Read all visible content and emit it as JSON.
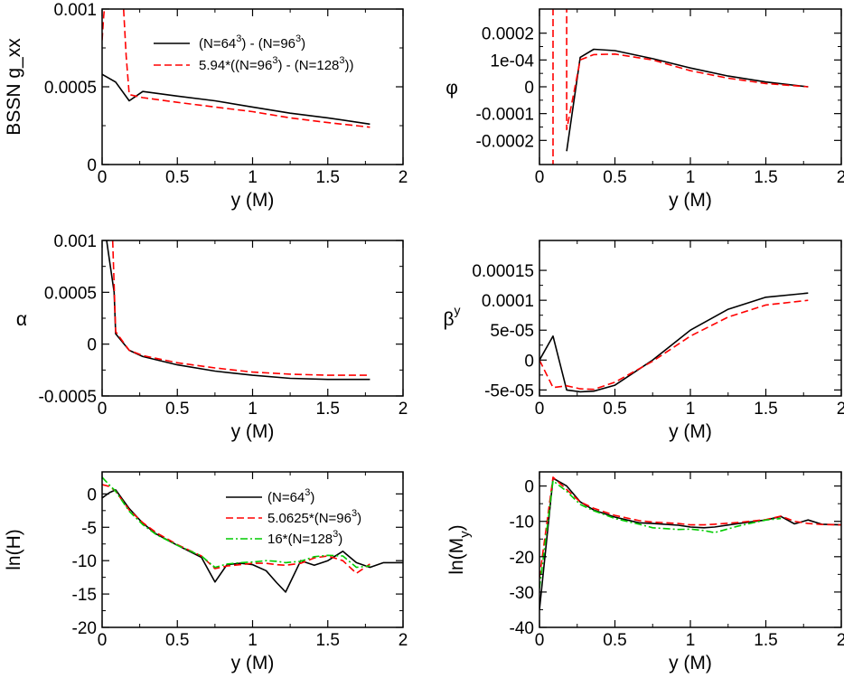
{
  "chart_data": [
    {
      "id": "gxx",
      "type": "line",
      "xlabel": "y (M)",
      "ylabel": "BSSN g_xx",
      "xlim": [
        0,
        2
      ],
      "ylim": [
        0,
        0.001
      ],
      "xticks": [
        0,
        0.5,
        1,
        1.5,
        2
      ],
      "xtick_labels": [
        "0",
        "0.5",
        "1",
        "1.5",
        "2"
      ],
      "yticks": [
        0,
        0.0005,
        0.001
      ],
      "ytick_labels": [
        "0",
        "0.0005",
        "0.001"
      ],
      "legend_position": "top-right",
      "series": [
        {
          "name": "(N=64^3) - (N=96^3)",
          "legend": [
            "(N=64",
            "3",
            ") - (N=96",
            "3",
            ")"
          ],
          "style": "solid",
          "color": "#000000",
          "x": [
            0.0,
            0.09,
            0.18,
            0.27,
            0.5,
            0.75,
            1.0,
            1.25,
            1.5,
            1.78
          ],
          "y": [
            0.00058,
            0.00053,
            0.00041,
            0.00047,
            0.00044,
            0.00041,
            0.00037,
            0.00033,
            0.0003,
            0.00026
          ]
        },
        {
          "name": "5.94*((N=96^3) - (N=128^3))",
          "legend": [
            "5.94*((N=96",
            "3",
            ") - (N=128",
            "3",
            "))"
          ],
          "style": "dashed",
          "color": "#ff0000",
          "x": [
            0.0,
            0.01,
            0.02,
            0.14,
            0.16,
            0.18,
            0.27,
            0.5,
            0.75,
            1.0,
            1.25,
            1.5,
            1.78
          ],
          "y": [
            0.0008,
            0.00095,
            0.00105,
            0.00105,
            0.0007,
            0.00045,
            0.00043,
            0.0004,
            0.00037,
            0.00034,
            0.0003,
            0.00027,
            0.00024
          ]
        }
      ]
    },
    {
      "id": "phi",
      "type": "line",
      "xlabel": "y (M)",
      "ylabel": "φ",
      "xlim": [
        0,
        2
      ],
      "ylim": [
        -0.00029,
        0.00029
      ],
      "xticks": [
        0,
        0.5,
        1,
        1.5,
        2
      ],
      "xtick_labels": [
        "0",
        "0.5",
        "1",
        "1.5",
        "2"
      ],
      "yticks": [
        -0.0002,
        -0.0001,
        0,
        0.0001,
        0.0002
      ],
      "ytick_labels": [
        "-0.0002",
        "-0.0001",
        "0",
        "1e-04",
        "0.0002"
      ],
      "series": [
        {
          "name": "(N=64^3) - (N=96^3)",
          "style": "solid",
          "color": "#000000",
          "x": [
            0.18,
            0.27,
            0.36,
            0.5,
            0.75,
            1.0,
            1.25,
            1.5,
            1.78
          ],
          "y": [
            -0.00024,
            0.00011,
            0.00014,
            0.000135,
            0.000105,
            7e-05,
            4e-05,
            1.8e-05,
            0.0
          ]
        },
        {
          "name": "5.94*((N=96^3) - (N=128^3))",
          "style": "dashed",
          "color": "#ff0000",
          "x": [
            0.09,
            0.09,
            0.09,
            0.18,
            0.18,
            0.18,
            0.27,
            0.36,
            0.5,
            0.75,
            1.0,
            1.25,
            1.5,
            1.78
          ],
          "y": [
            -0.0003,
            0.0,
            0.0003,
            0.0003,
            0.0,
            -0.00016,
            0.0001,
            0.00012,
            0.000122,
            0.0001,
            6e-05,
            3.2e-05,
            1.2e-05,
            0.0
          ]
        }
      ]
    },
    {
      "id": "alpha",
      "type": "line",
      "xlabel": "y (M)",
      "ylabel": "α",
      "xlim": [
        0,
        2
      ],
      "ylim": [
        -0.0005,
        0.001
      ],
      "xticks": [
        0,
        0.5,
        1,
        1.5,
        2
      ],
      "xtick_labels": [
        "0",
        "0.5",
        "1",
        "1.5",
        "2"
      ],
      "yticks": [
        -0.0005,
        0,
        0.0005,
        0.001
      ],
      "ytick_labels": [
        "-0.0005",
        "0",
        "0.0005",
        "0.001"
      ],
      "series": [
        {
          "name": "(N=64^3) - (N=96^3)",
          "style": "solid",
          "color": "#000000",
          "x": [
            0.03,
            0.05,
            0.08,
            0.09,
            0.18,
            0.27,
            0.5,
            0.75,
            1.0,
            1.25,
            1.5,
            1.78
          ],
          "y": [
            0.001,
            0.0008,
            0.0005,
            0.0001,
            -6e-05,
            -0.00012,
            -0.0002,
            -0.00026,
            -0.0003,
            -0.00033,
            -0.00034,
            -0.00034
          ]
        },
        {
          "name": "5.94*((N=96^3) - (N=128^3))",
          "style": "dashed",
          "color": "#ff0000",
          "x": [
            0.07,
            0.09,
            0.18,
            0.27,
            0.5,
            0.75,
            1.0,
            1.25,
            1.5,
            1.78
          ],
          "y": [
            0.001,
            0.00012,
            -6e-05,
            -0.00011,
            -0.00018,
            -0.00023,
            -0.00027,
            -0.00029,
            -0.0003,
            -0.0003
          ]
        }
      ]
    },
    {
      "id": "betay",
      "type": "line",
      "xlabel": "y (M)",
      "ylabel": "βy",
      "ylabel_main": "β",
      "ylabel_sup": "y",
      "xlim": [
        0,
        2
      ],
      "ylim": [
        -6e-05,
        0.0002
      ],
      "xticks": [
        0,
        0.5,
        1,
        1.5,
        2
      ],
      "xtick_labels": [
        "0",
        "0.5",
        "1",
        "1.5",
        "2"
      ],
      "yticks": [
        -5e-05,
        0,
        5e-05,
        0.0001,
        0.00015
      ],
      "ytick_labels": [
        "-5e-05",
        "0",
        "5e-05",
        "0.0001",
        "0.00015"
      ],
      "series": [
        {
          "name": "(N=64^3) - (N=96^3)",
          "style": "solid",
          "color": "#000000",
          "x": [
            0.0,
            0.09,
            0.18,
            0.27,
            0.36,
            0.5,
            0.75,
            1.0,
            1.25,
            1.5,
            1.78
          ],
          "y": [
            0.0,
            4e-05,
            -5e-05,
            -5.3e-05,
            -5.2e-05,
            -4.2e-05,
            0.0,
            5e-05,
            8.5e-05,
            0.000105,
            0.000112
          ]
        },
        {
          "name": "5.94*((N=96^3) - (N=128^3))",
          "style": "dashed",
          "color": "#ff0000",
          "x": [
            0.0,
            0.09,
            0.18,
            0.27,
            0.36,
            0.5,
            0.75,
            1.0,
            1.25,
            1.5,
            1.78
          ],
          "y": [
            0.0,
            -4.6e-05,
            -4.3e-05,
            -4.8e-05,
            -4.9e-05,
            -3.7e-05,
            -2e-06,
            4e-05,
            7.2e-05,
            9.2e-05,
            0.0001
          ]
        }
      ]
    },
    {
      "id": "lnH",
      "type": "line",
      "xlabel": "y (M)",
      "ylabel": "ln(H)",
      "xlim": [
        0,
        2
      ],
      "ylim": [
        -20,
        3.3
      ],
      "xticks": [
        0,
        0.5,
        1,
        1.5,
        2
      ],
      "xtick_labels": [
        "0",
        "0.5",
        "1",
        "1.5",
        "2"
      ],
      "yticks": [
        -20,
        -15,
        -10,
        -5,
        0
      ],
      "ytick_labels": [
        "-20",
        "-15",
        "-10",
        "-5",
        "0"
      ],
      "legend_position": "center-right",
      "series": [
        {
          "name": "(N=64^3)",
          "legend": [
            "(N=64",
            "3",
            ")"
          ],
          "style": "solid",
          "color": "#000000",
          "x": [
            0.0,
            0.05,
            0.09,
            0.18,
            0.27,
            0.36,
            0.5,
            0.66,
            0.75,
            0.83,
            0.92,
            1.0,
            1.09,
            1.16,
            1.22,
            1.32,
            1.41,
            1.5,
            1.6,
            1.69,
            1.78,
            1.87,
            2.0
          ],
          "y": [
            -0.6,
            0.2,
            0.6,
            -2.2,
            -4.4,
            -6.0,
            -7.7,
            -9.5,
            -13.2,
            -10.6,
            -10.4,
            -10.6,
            -11.5,
            -13.3,
            -14.7,
            -10.0,
            -10.7,
            -10.0,
            -8.6,
            -10.3,
            -11.0,
            -10.3,
            -10.3
          ]
        },
        {
          "name": "5.0625*(N=96^3)",
          "legend": [
            "5.0625*(N=96",
            "3",
            ")"
          ],
          "style": "dashed",
          "color": "#ff0000",
          "x": [
            0.0,
            0.05,
            0.09,
            0.18,
            0.27,
            0.36,
            0.5,
            0.66,
            0.75,
            0.83,
            0.92,
            1.0,
            1.09,
            1.16,
            1.22,
            1.32,
            1.41,
            1.5,
            1.6,
            1.69,
            1.78
          ],
          "y": [
            1.4,
            1.1,
            0.4,
            -2.4,
            -4.3,
            -5.8,
            -7.6,
            -9.3,
            -11.2,
            -10.8,
            -10.6,
            -10.4,
            -10.4,
            -10.6,
            -10.7,
            -10.4,
            -9.6,
            -9.3,
            -10.0,
            -11.9,
            -10.5
          ]
        },
        {
          "name": "16*(N=128^3)",
          "legend": [
            "16*(N=128",
            "3",
            ")"
          ],
          "style": "dashdot",
          "color": "#00cc00",
          "x": [
            0.0,
            0.05,
            0.09,
            0.18,
            0.27,
            0.36,
            0.5,
            0.66,
            0.75,
            0.83,
            0.92,
            1.0,
            1.09,
            1.16,
            1.22,
            1.32,
            1.41,
            1.5,
            1.6,
            1.69,
            1.78
          ],
          "y": [
            2.5,
            1.3,
            0.4,
            -2.6,
            -4.6,
            -6.1,
            -7.7,
            -9.3,
            -11.0,
            -10.5,
            -10.3,
            -10.2,
            -10.0,
            -10.1,
            -10.3,
            -10.1,
            -9.4,
            -9.2,
            -9.3,
            -11.0,
            -10.8
          ]
        }
      ]
    },
    {
      "id": "lnMy",
      "type": "line",
      "xlabel": "y (M)",
      "ylabel": "ln(My)",
      "ylabel_main": "ln(M",
      "ylabel_sub": "y",
      "ylabel_tail": ")",
      "xlim": [
        0,
        2
      ],
      "ylim": [
        -40,
        4
      ],
      "xticks": [
        0,
        0.5,
        1,
        1.5,
        2
      ],
      "xtick_labels": [
        "0",
        "0.5",
        "1",
        "1.5",
        "2"
      ],
      "yticks": [
        -40,
        -30,
        -20,
        -10,
        0
      ],
      "ytick_labels": [
        "-40",
        "-30",
        "-20",
        "-10",
        "0"
      ],
      "series": [
        {
          "name": "(N=64^3)",
          "style": "solid",
          "color": "#000000",
          "x": [
            0.0,
            0.09,
            0.18,
            0.27,
            0.36,
            0.5,
            0.66,
            0.75,
            0.92,
            1.0,
            1.09,
            1.16,
            1.32,
            1.5,
            1.6,
            1.69,
            1.78,
            1.87,
            2.0
          ],
          "y": [
            -35.0,
            2.2,
            0.0,
            -4.5,
            -6.8,
            -8.8,
            -10.4,
            -10.6,
            -11.1,
            -11.6,
            -11.8,
            -11.6,
            -10.6,
            -9.6,
            -8.6,
            -10.7,
            -9.6,
            -10.8,
            -11.0
          ]
        },
        {
          "name": "5.0625*(N=96^3)",
          "style": "dashed",
          "color": "#ff0000",
          "x": [
            0.0,
            0.09,
            0.18,
            0.27,
            0.36,
            0.5,
            0.66,
            0.75,
            0.92,
            1.0,
            1.09,
            1.16,
            1.32,
            1.5,
            1.6,
            1.69,
            1.78,
            1.87,
            2.0
          ],
          "y": [
            -26.0,
            2.5,
            -1.0,
            -4.5,
            -6.3,
            -8.3,
            -9.8,
            -10.2,
            -10.6,
            -11.0,
            -11.0,
            -10.8,
            -10.3,
            -9.5,
            -8.5,
            -10.0,
            -10.6,
            -10.9,
            -11.0
          ]
        },
        {
          "name": "16*(N=128^3)",
          "style": "dashdot",
          "color": "#00cc00",
          "x": [
            0.0,
            0.09,
            0.18,
            0.27,
            0.36,
            0.5,
            0.66,
            0.75,
            0.92,
            1.0,
            1.09,
            1.16,
            1.32,
            1.5,
            1.6
          ],
          "y": [
            -29.0,
            1.5,
            -1.5,
            -5.2,
            -7.0,
            -9.2,
            -10.8,
            -11.8,
            -12.3,
            -12.2,
            -12.6,
            -13.2,
            -11.3,
            -9.6,
            -9.2
          ]
        }
      ]
    }
  ]
}
